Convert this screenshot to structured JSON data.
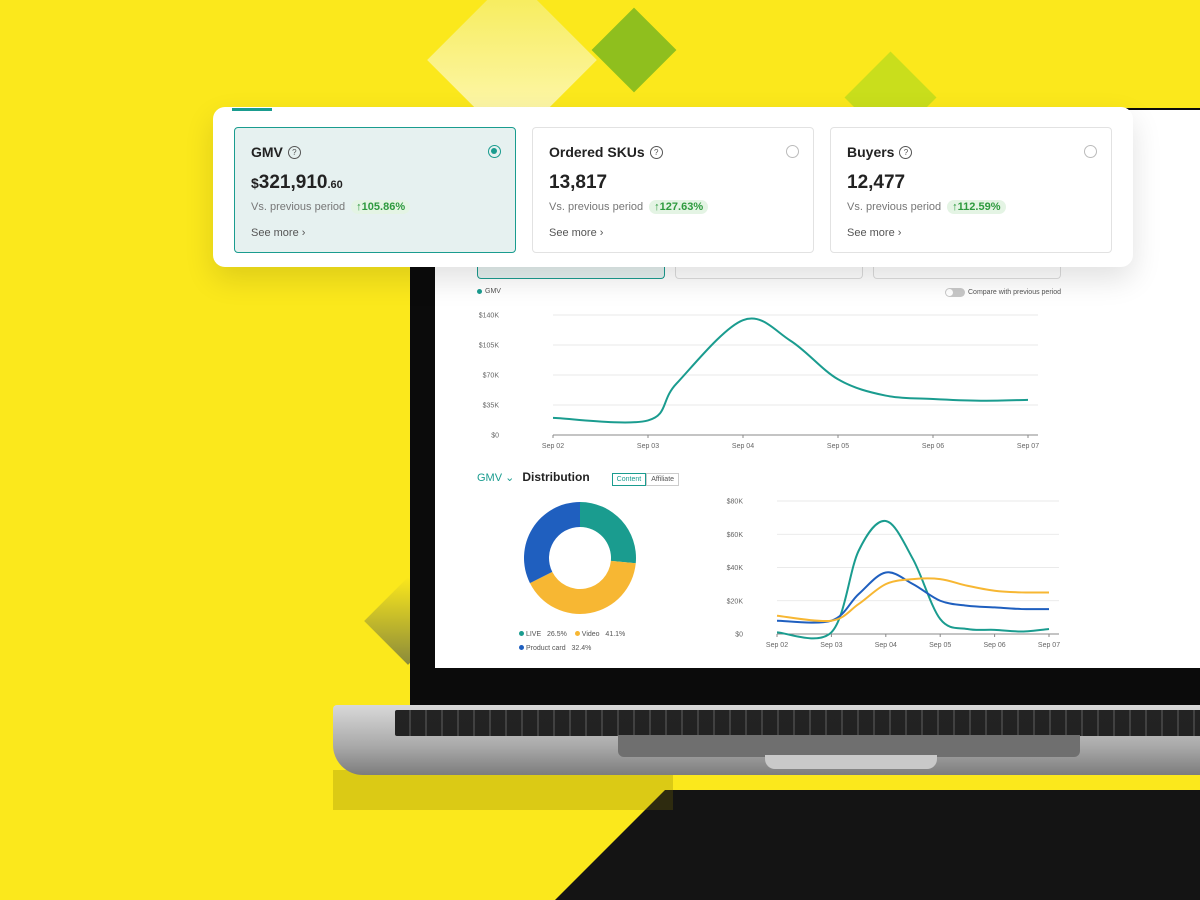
{
  "colors": {
    "brand_yellow": "#fbe81c",
    "accent_teal": "#1a9c8f",
    "blue": "#1f5fbf",
    "orange": "#f7b733",
    "positive_green": "#2e9a3e"
  },
  "stats": [
    {
      "title": "GMV",
      "currency": "$",
      "value": "321,910",
      "cents": ".60",
      "compare_label": "Vs. previous period",
      "change": "105.86%",
      "see_more": "See more",
      "selected": true
    },
    {
      "title": "Ordered SKUs",
      "currency": "",
      "value": "13,817",
      "cents": "",
      "compare_label": "Vs. previous period",
      "change": "127.63%",
      "see_more": "See more",
      "selected": false
    },
    {
      "title": "Buyers",
      "currency": "",
      "value": "12,477",
      "cents": "",
      "compare_label": "Vs. previous period",
      "change": "112.59%",
      "see_more": "See more",
      "selected": false
    }
  ],
  "trend": {
    "legend": "GMV",
    "compare_toggle_label": "Compare with previous period",
    "compare_enabled": false
  },
  "distribution": {
    "metric_selector": "GMV",
    "title": "Distribution",
    "segments": [
      {
        "label": "Content",
        "active": true
      },
      {
        "label": "Affiliate",
        "active": false
      }
    ],
    "legend": [
      {
        "label": "LIVE",
        "value": "26.5%",
        "color": "#1a9c8f"
      },
      {
        "label": "Video",
        "value": "41.1%",
        "color": "#f7b733"
      },
      {
        "label": "Product card",
        "value": "32.4%",
        "color": "#1f5fbf"
      }
    ]
  },
  "chart_data": [
    {
      "type": "line",
      "title": "",
      "xlabel": "",
      "ylabel": "",
      "x": [
        "Sep 02",
        "Sep 03",
        "Sep 04",
        "Sep 05",
        "Sep 06",
        "Sep 07"
      ],
      "yticks": [
        "$0",
        "$35K",
        "$70K",
        "$105K",
        "$140K"
      ],
      "ylim": [
        0,
        140000
      ],
      "grid": true,
      "series": [
        {
          "name": "GMV",
          "color": "#1a9c8f",
          "points": [
            [
              0,
              20000
            ],
            [
              1,
              17000
            ],
            [
              1.3,
              60000
            ],
            [
              2,
              134000
            ],
            [
              2.5,
              110000
            ],
            [
              3,
              65000
            ],
            [
              3.5,
              46000
            ],
            [
              4,
              42000
            ],
            [
              4.5,
              40000
            ],
            [
              5,
              41000
            ]
          ]
        }
      ]
    },
    {
      "type": "pie",
      "title": "",
      "slices": [
        {
          "label": "LIVE",
          "value": 26.5,
          "color": "#1a9c8f"
        },
        {
          "label": "Video",
          "value": 41.1,
          "color": "#f7b733"
        },
        {
          "label": "Product card",
          "value": 32.4,
          "color": "#1f5fbf"
        }
      ]
    },
    {
      "type": "line",
      "title": "",
      "x": [
        "Sep 02",
        "Sep 03",
        "Sep 04",
        "Sep 05",
        "Sep 06",
        "Sep 07"
      ],
      "yticks": [
        "$0",
        "$20K",
        "$40K",
        "$60K",
        "$80K"
      ],
      "ylim": [
        0,
        80000
      ],
      "grid": true,
      "series": [
        {
          "color": "#1a9c8f",
          "points": [
            [
              0,
              1000
            ],
            [
              1,
              1000
            ],
            [
              1.5,
              50000
            ],
            [
              2,
              68000
            ],
            [
              2.5,
              45000
            ],
            [
              3,
              9000
            ],
            [
              3.5,
              3000
            ],
            [
              4,
              2500
            ],
            [
              4.5,
              1500
            ],
            [
              5,
              3000
            ]
          ]
        },
        {
          "color": "#1f5fbf",
          "points": [
            [
              0,
              8000
            ],
            [
              1,
              8000
            ],
            [
              1.5,
              24000
            ],
            [
              2,
              37000
            ],
            [
              2.5,
              30000
            ],
            [
              3,
              20000
            ],
            [
              3.5,
              17000
            ],
            [
              4,
              16000
            ],
            [
              4.5,
              15000
            ],
            [
              5,
              15000
            ]
          ]
        },
        {
          "color": "#f7b733",
          "points": [
            [
              0,
              11000
            ],
            [
              1,
              8000
            ],
            [
              1.5,
              18000
            ],
            [
              2,
              30000
            ],
            [
              2.5,
              33000
            ],
            [
              3,
              33000
            ],
            [
              3.5,
              29000
            ],
            [
              4,
              26000
            ],
            [
              4.5,
              25000
            ],
            [
              5,
              25000
            ]
          ]
        }
      ]
    }
  ]
}
